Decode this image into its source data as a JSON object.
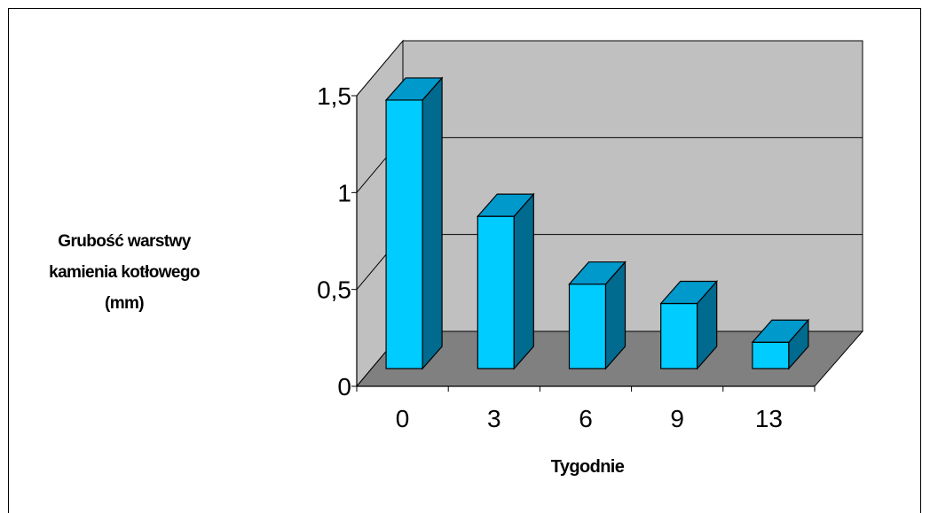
{
  "chart_data": {
    "type": "bar",
    "categories": [
      "0",
      "3",
      "6",
      "9",
      "13"
    ],
    "values": [
      1.45,
      0.85,
      0.5,
      0.4,
      0.2
    ],
    "xlabel": "Tygodnie",
    "ylabel_lines": [
      "Grubość warstwy",
      "kamienia kotłowego",
      "(mm)"
    ],
    "ylim": [
      0,
      1.5
    ],
    "yticks": [
      "0",
      "0,5",
      "1",
      "1,5"
    ],
    "grid": true,
    "legend": "none",
    "colors": {
      "bar_front": "#00ccff",
      "bar_top": "#0099cc",
      "bar_side": "#006a8f",
      "back_wall": "#c0c0c0",
      "floor": "#808080"
    }
  }
}
